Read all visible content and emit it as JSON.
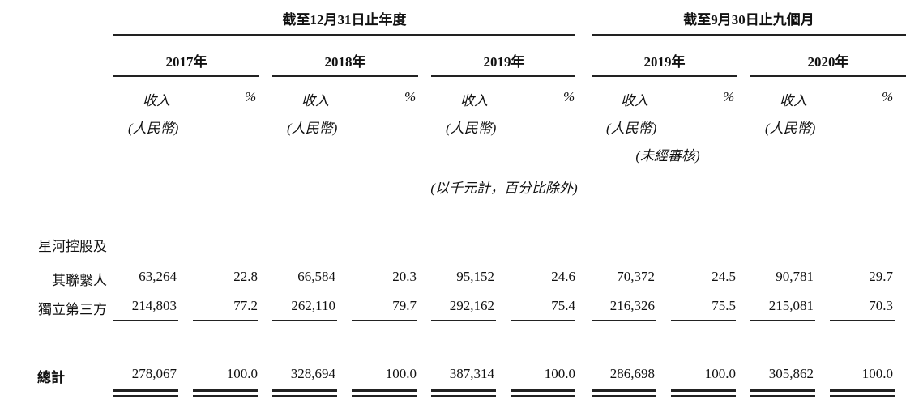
{
  "header": {
    "group1": "截至12月31日止年度",
    "group2": "截至9月30日止九個月",
    "years": [
      "2017年",
      "2018年",
      "2019年",
      "2019年",
      "2020年"
    ],
    "revenue_label_line1": "收入",
    "revenue_label_line2": "(人民幣)",
    "percent_label": "%",
    "unaudited": "(未經審核)",
    "unit_note": "(以千元計，百分比除外)"
  },
  "rows": [
    {
      "label_lines": [
        "星河控股及",
        "其聯繫人"
      ],
      "values": [
        "63,264",
        "22.8",
        "66,584",
        "20.3",
        "95,152",
        "24.6",
        "70,372",
        "24.5",
        "90,781",
        "29.7"
      ]
    },
    {
      "label_lines": [
        "獨立第三方"
      ],
      "values": [
        "214,803",
        "77.2",
        "262,110",
        "79.7",
        "292,162",
        "75.4",
        "216,326",
        "75.5",
        "215,081",
        "70.3"
      ]
    }
  ],
  "total": {
    "label": "總計",
    "values": [
      "278,067",
      "100.0",
      "328,694",
      "100.0",
      "387,314",
      "100.0",
      "286,698",
      "100.0",
      "305,862",
      "100.0"
    ]
  }
}
